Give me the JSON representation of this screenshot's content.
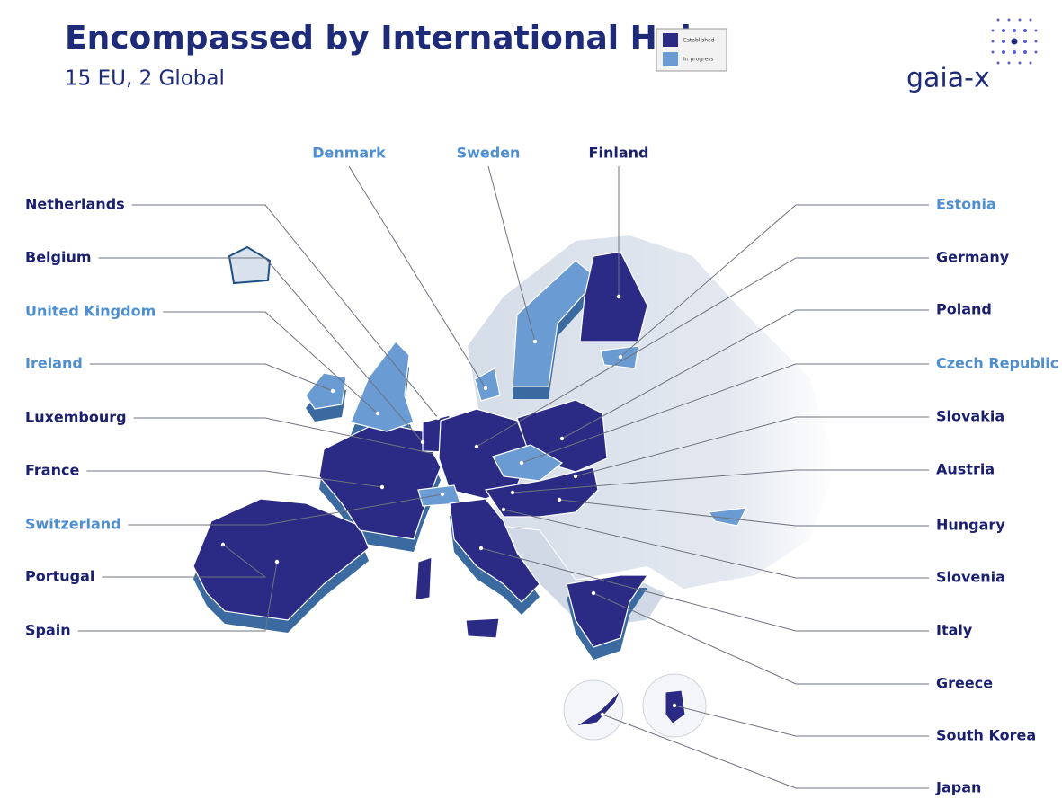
{
  "header": {
    "title": "Encompassed by International Hubs",
    "subtitle": "15 EU, 2 Global"
  },
  "logo": "gaia-x",
  "groups": [
    {
      "label": "Established",
      "color": "#2b2b86",
      "hubs": [
        "Finland",
        "Netherlands",
        "Belgium",
        "Luxembourg",
        "France",
        "Portugal",
        "Spain",
        "Germany",
        "Poland",
        "Slovakia",
        "Austria",
        "Hungary",
        "Slovenia",
        "Italy",
        "Greece",
        "South Korea",
        "Japan"
      ]
    },
    {
      "label": "In progress",
      "color": "#6a9bd3",
      "hubs": [
        "Denmark",
        "Sweden",
        "United Kingdom",
        "Ireland",
        "Switzerland",
        "Estonia",
        "Czech Republic"
      ]
    }
  ]
}
